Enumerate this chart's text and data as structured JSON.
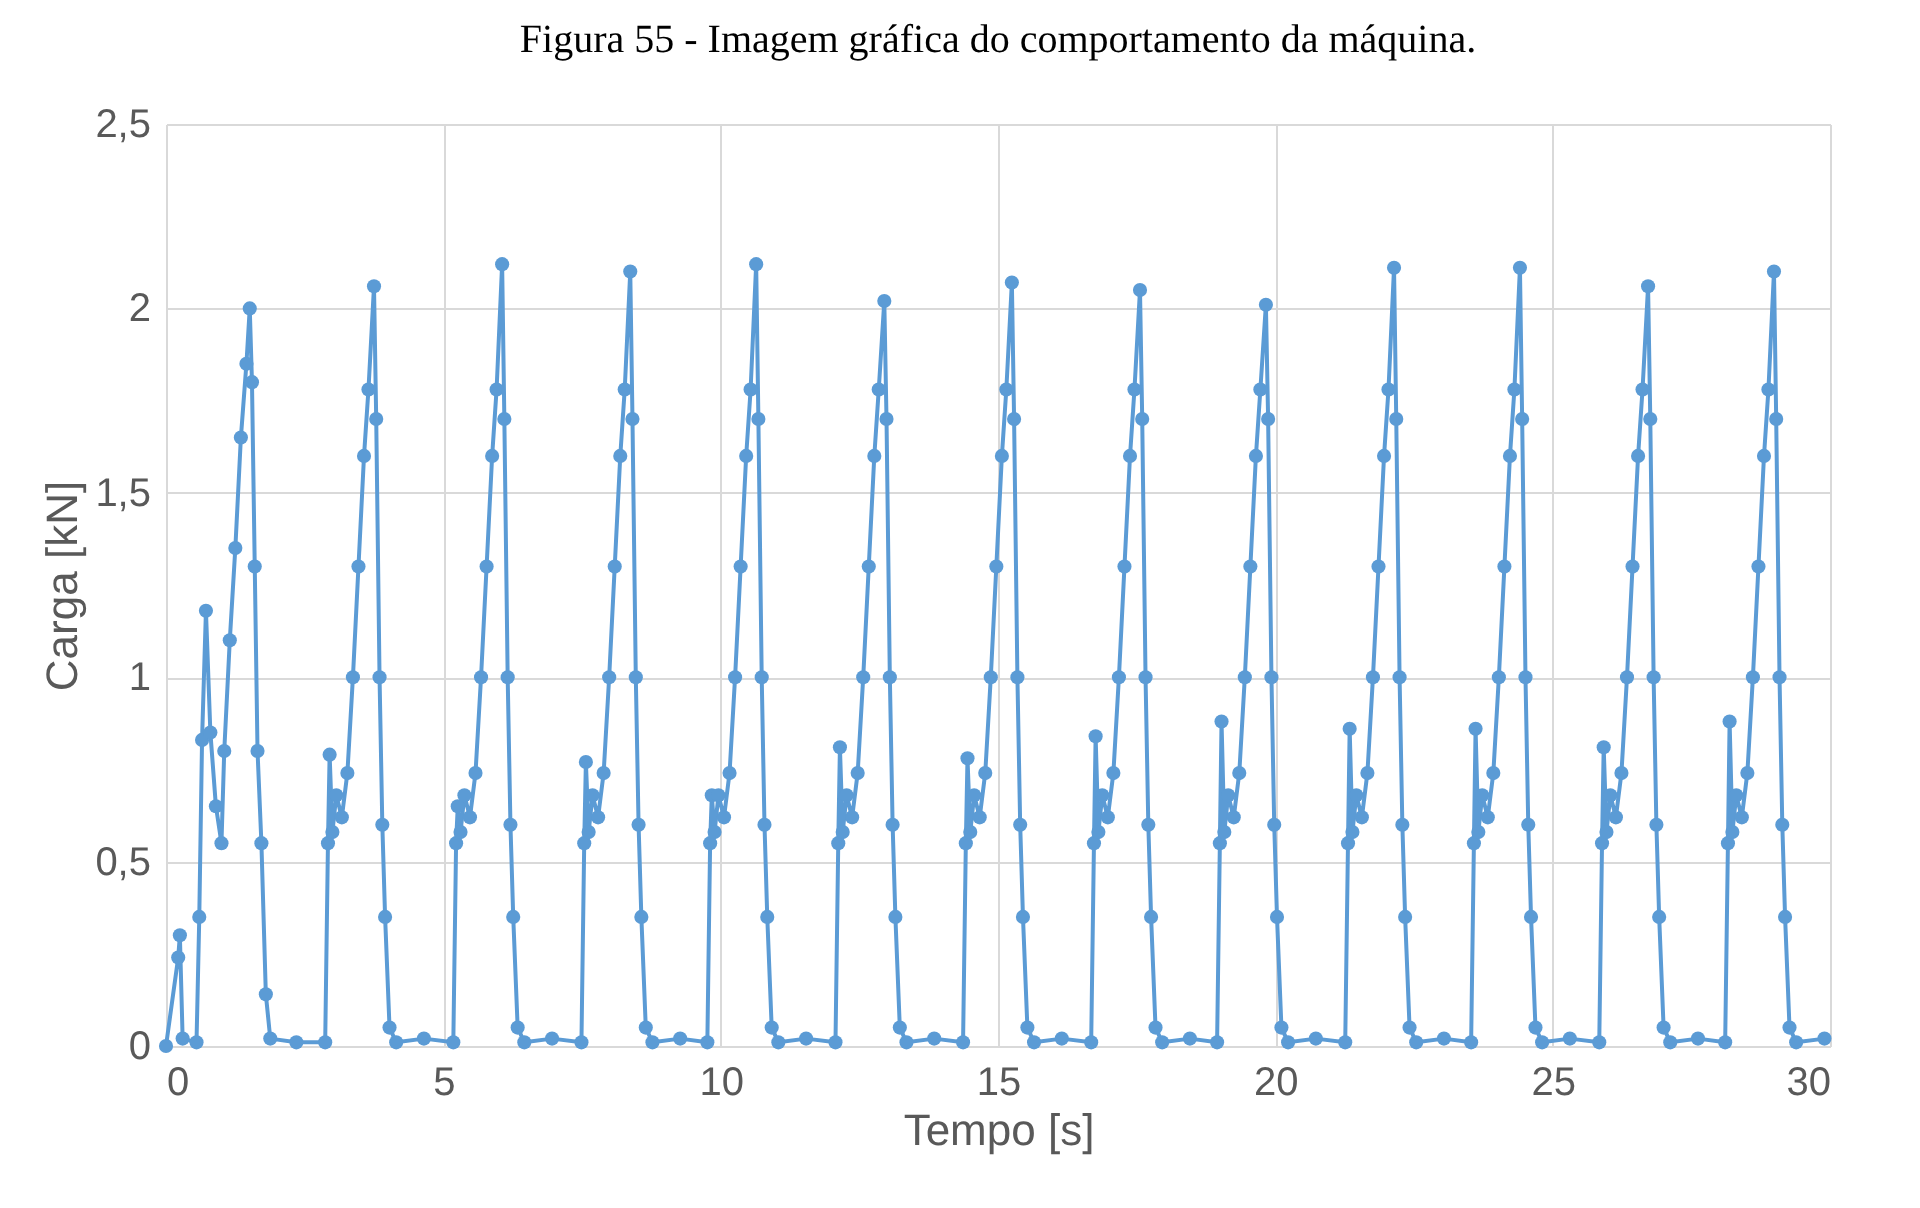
{
  "chart_data": {
    "type": "line",
    "title": "Figura 55 - Imagem gráfica do comportamento da máquina.",
    "xlabel": "Tempo [s]",
    "ylabel": "Carga [kN]",
    "x": [
      0,
      0.22,
      0.25,
      0.3,
      0.55,
      0.6,
      0.65,
      0.72,
      0.8,
      0.9,
      1.0,
      1.05,
      1.15,
      1.25,
      1.35,
      1.45,
      1.51,
      1.55,
      1.6,
      1.65,
      1.72,
      1.8,
      1.88,
      2.35,
      2.87,
      2.92,
      2.95,
      3.0,
      3.07,
      3.17,
      3.27,
      3.37,
      3.47,
      3.57,
      3.65,
      3.75,
      3.79,
      3.85,
      3.9,
      3.95,
      4.03,
      4.15,
      4.65,
      5.18,
      5.23,
      5.26,
      5.31,
      5.38,
      5.48,
      5.58,
      5.68,
      5.78,
      5.88,
      5.96,
      6.06,
      6.1,
      6.16,
      6.21,
      6.26,
      6.34,
      6.46,
      6.96,
      7.49,
      7.54,
      7.57,
      7.62,
      7.69,
      7.79,
      7.89,
      7.99,
      8.09,
      8.19,
      8.27,
      8.37,
      8.41,
      8.47,
      8.52,
      8.57,
      8.65,
      8.77,
      9.27,
      9.76,
      9.81,
      9.84,
      9.89,
      9.96,
      10.06,
      10.16,
      10.26,
      10.36,
      10.46,
      10.54,
      10.64,
      10.68,
      10.74,
      10.79,
      10.84,
      10.92,
      11.04,
      11.54,
      12.07,
      12.12,
      12.15,
      12.2,
      12.27,
      12.37,
      12.47,
      12.57,
      12.67,
      12.77,
      12.85,
      12.95,
      12.99,
      13.05,
      13.1,
      13.15,
      13.23,
      13.35,
      13.85,
      14.37,
      14.42,
      14.45,
      14.5,
      14.57,
      14.67,
      14.77,
      14.87,
      14.97,
      15.07,
      15.15,
      15.25,
      15.29,
      15.35,
      15.4,
      15.45,
      15.53,
      15.65,
      16.15,
      16.68,
      16.73,
      16.76,
      16.81,
      16.88,
      16.98,
      17.08,
      17.18,
      17.28,
      17.38,
      17.46,
      17.56,
      17.6,
      17.66,
      17.71,
      17.76,
      17.84,
      17.96,
      18.46,
      18.95,
      19.0,
      19.03,
      19.08,
      19.15,
      19.25,
      19.35,
      19.45,
      19.55,
      19.65,
      19.73,
      19.83,
      19.87,
      19.93,
      19.98,
      20.03,
      20.11,
      20.23,
      20.73,
      21.26,
      21.31,
      21.34,
      21.39,
      21.46,
      21.56,
      21.66,
      21.76,
      21.86,
      21.96,
      22.04,
      22.14,
      22.18,
      22.24,
      22.29,
      22.34,
      22.42,
      22.54,
      23.04,
      23.53,
      23.58,
      23.61,
      23.66,
      23.73,
      23.83,
      23.93,
      24.03,
      24.13,
      24.23,
      24.31,
      24.41,
      24.45,
      24.51,
      24.56,
      24.61,
      24.69,
      24.81,
      25.31,
      25.84,
      25.89,
      25.92,
      25.97,
      26.04,
      26.14,
      26.24,
      26.34,
      26.44,
      26.54,
      26.62,
      26.72,
      26.76,
      26.82,
      26.87,
      26.92,
      27.0,
      27.12,
      27.62,
      28.11,
      28.16,
      28.19,
      28.24,
      28.31,
      28.41,
      28.51,
      28.61,
      28.71,
      28.81,
      28.89,
      28.99,
      29.03,
      29.09,
      29.14,
      29.19,
      29.27,
      29.39,
      29.9
    ],
    "series": [
      {
        "color": "#5b9bd5",
        "values": [
          0,
          0.24,
          0.3,
          0.02,
          0.01,
          0.35,
          0.83,
          1.18,
          0.85,
          0.65,
          0.55,
          0.8,
          1.1,
          1.35,
          1.65,
          1.85,
          2.0,
          1.8,
          1.3,
          0.8,
          0.55,
          0.14,
          0.02,
          0.01,
          0.01,
          0.55,
          0.79,
          0.58,
          0.68,
          0.62,
          0.74,
          1.0,
          1.3,
          1.6,
          1.78,
          2.06,
          1.7,
          1.0,
          0.6,
          0.35,
          0.05,
          0.01,
          0.02,
          0.01,
          0.55,
          0.65,
          0.58,
          0.68,
          0.62,
          0.74,
          1.0,
          1.3,
          1.6,
          1.78,
          2.12,
          1.7,
          1.0,
          0.6,
          0.35,
          0.05,
          0.01,
          0.02,
          0.01,
          0.55,
          0.77,
          0.58,
          0.68,
          0.62,
          0.74,
          1.0,
          1.3,
          1.6,
          1.78,
          2.1,
          1.7,
          1.0,
          0.6,
          0.35,
          0.05,
          0.01,
          0.02,
          0.01,
          0.55,
          0.68,
          0.58,
          0.68,
          0.62,
          0.74,
          1.0,
          1.3,
          1.6,
          1.78,
          2.12,
          1.7,
          1.0,
          0.6,
          0.35,
          0.05,
          0.01,
          0.02,
          0.01,
          0.55,
          0.81,
          0.58,
          0.68,
          0.62,
          0.74,
          1.0,
          1.3,
          1.6,
          1.78,
          2.02,
          1.7,
          1.0,
          0.6,
          0.35,
          0.05,
          0.01,
          0.02,
          0.01,
          0.55,
          0.78,
          0.58,
          0.68,
          0.62,
          0.74,
          1.0,
          1.3,
          1.6,
          1.78,
          2.07,
          1.7,
          1.0,
          0.6,
          0.35,
          0.05,
          0.01,
          0.02,
          0.01,
          0.55,
          0.84,
          0.58,
          0.68,
          0.62,
          0.74,
          1.0,
          1.3,
          1.6,
          1.78,
          2.05,
          1.7,
          1.0,
          0.6,
          0.35,
          0.05,
          0.01,
          0.02,
          0.01,
          0.55,
          0.88,
          0.58,
          0.68,
          0.62,
          0.74,
          1.0,
          1.3,
          1.6,
          1.78,
          2.01,
          1.7,
          1.0,
          0.6,
          0.35,
          0.05,
          0.01,
          0.02,
          0.01,
          0.55,
          0.86,
          0.58,
          0.68,
          0.62,
          0.74,
          1.0,
          1.3,
          1.6,
          1.78,
          2.11,
          1.7,
          1.0,
          0.6,
          0.35,
          0.05,
          0.01,
          0.02,
          0.01,
          0.55,
          0.86,
          0.58,
          0.68,
          0.62,
          0.74,
          1.0,
          1.3,
          1.6,
          1.78,
          2.11,
          1.7,
          1.0,
          0.6,
          0.35,
          0.05,
          0.01,
          0.02,
          0.01,
          0.55,
          0.81,
          0.58,
          0.68,
          0.62,
          0.74,
          1.0,
          1.3,
          1.6,
          1.78,
          2.06,
          1.7,
          1.0,
          0.6,
          0.35,
          0.05,
          0.01,
          0.02,
          0.01,
          0.55,
          0.88,
          0.58,
          0.68,
          0.62,
          0.74,
          1.0,
          1.3,
          1.6,
          1.78,
          2.1,
          1.7,
          1.0,
          0.6,
          0.35,
          0.05,
          0.01,
          0.02
        ]
      }
    ],
    "xlim": [
      0,
      30
    ],
    "xticks": [
      0,
      5,
      10,
      15,
      20,
      25,
      30
    ],
    "ylim": [
      0,
      2.5
    ],
    "yticks": [
      0,
      {
        "value": 0.5,
        "label": "0,5"
      },
      1,
      {
        "value": 1.5,
        "label": "1,5"
      },
      2,
      {
        "value": 2.5,
        "label": "2,5"
      }
    ],
    "grid": true,
    "marker": "circle",
    "line_style": "solid"
  }
}
